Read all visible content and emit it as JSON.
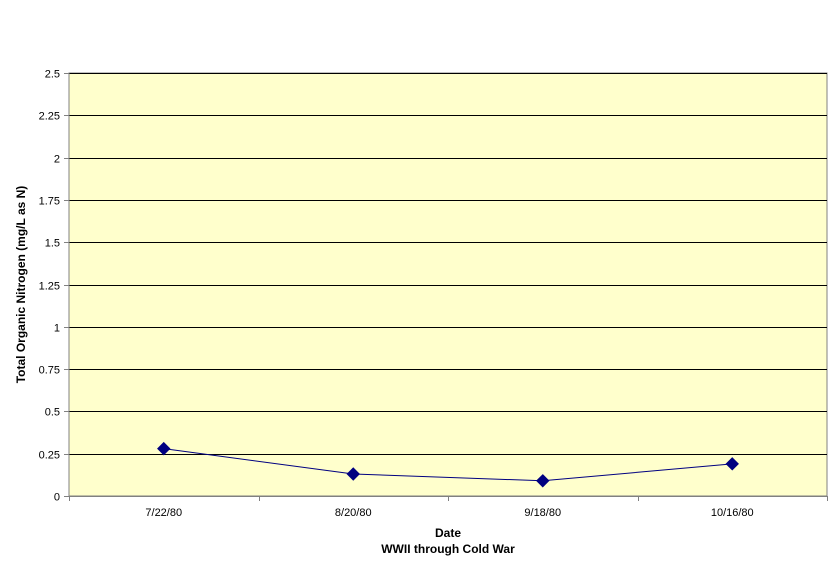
{
  "chart_data": {
    "type": "line",
    "title": "",
    "xlabel": "Date",
    "xlabel_sub": "WWII through Cold War",
    "ylabel": "Total Organic Nitrogen (mg/L as N)",
    "ylim": [
      0,
      2.5
    ],
    "yticks": [
      "0",
      "0.25",
      "0.5",
      "0.75",
      "1",
      "1.25",
      "1.5",
      "1.75",
      "2",
      "2.25",
      "2.5"
    ],
    "categories": [
      "7/22/80",
      "8/20/80",
      "9/18/80",
      "10/16/80"
    ],
    "series": [
      {
        "values": [
          0.28,
          0.13,
          0.09,
          0.19
        ]
      }
    ],
    "grid": true,
    "legend": "none",
    "colors": {
      "plot_background": "#ffffcc",
      "series": "#000080",
      "gridline": "#000000",
      "axis": "#808080"
    }
  }
}
